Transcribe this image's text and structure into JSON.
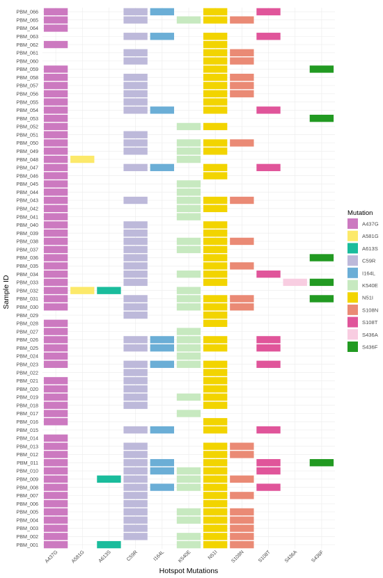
{
  "chart_data": {
    "type": "heatmap",
    "xlabel": "Hotspot Mutations",
    "ylabel": "Sample ID",
    "x_categories": [
      "A437G",
      "A581G",
      "A613S",
      "C59R",
      "I164L",
      "K540E",
      "N51I",
      "S108N",
      "S108T",
      "S436A",
      "S436F"
    ],
    "y_categories": [
      "PBM_066",
      "PBM_065",
      "PBM_064",
      "PBM_063",
      "PBM_062",
      "PBM_061",
      "PBM_060",
      "PBM_059",
      "PBM_058",
      "PBM_057",
      "PBM_056",
      "PBM_055",
      "PBM_054",
      "PBM_053",
      "PBM_052",
      "PBM_051",
      "PBM_050",
      "PBM_049",
      "PBM_048",
      "PBM_047",
      "PBM_046",
      "PBM_045",
      "PBM_044",
      "PBM_043",
      "PBM_042",
      "PBM_041",
      "PBM_040",
      "PBM_039",
      "PBM_038",
      "PBM_037",
      "PBM_036",
      "PBM_035",
      "PBM_034",
      "PBM_033",
      "PBM_032",
      "PBM_031",
      "PBM_030",
      "PBM_029",
      "PBM_028",
      "PBM_027",
      "PBM_026",
      "PBM_025",
      "PBM_024",
      "PBM_023",
      "PBM_022",
      "PBM_021",
      "PBM_020",
      "PBM_019",
      "PBM_018",
      "PBM_017",
      "PBM_016",
      "PBM_015",
      "PBM_014",
      "PBM_013",
      "PBM_012",
      "PBM_011",
      "PBM_010",
      "PBM_009",
      "PBM_008",
      "PBM_007",
      "PBM_006",
      "PBM_005",
      "PBM_004",
      "PBM_003",
      "PBM_002",
      "PBM_001"
    ],
    "presence": {
      "PBM_066": [
        "A437G",
        "C59R",
        "I164L",
        "N51I",
        "S108T"
      ],
      "PBM_065": [
        "A437G",
        "C59R",
        "K540E",
        "N51I",
        "S108N"
      ],
      "PBM_064": [
        "A437G"
      ],
      "PBM_063": [
        "C59R",
        "I164L",
        "N51I",
        "S108T"
      ],
      "PBM_062": [
        "A437G",
        "N51I"
      ],
      "PBM_061": [
        "C59R",
        "N51I",
        "S108N"
      ],
      "PBM_060": [
        "C59R",
        "N51I",
        "S108N"
      ],
      "PBM_059": [
        "A437G",
        "N51I",
        "S436F"
      ],
      "PBM_058": [
        "A437G",
        "C59R",
        "N51I",
        "S108N"
      ],
      "PBM_057": [
        "A437G",
        "C59R",
        "N51I",
        "S108N"
      ],
      "PBM_056": [
        "A437G",
        "C59R",
        "N51I",
        "S108N"
      ],
      "PBM_055": [
        "A437G",
        "C59R",
        "N51I"
      ],
      "PBM_054": [
        "A437G",
        "C59R",
        "I164L",
        "N51I",
        "S108T"
      ],
      "PBM_053": [
        "A437G",
        "S436F"
      ],
      "PBM_052": [
        "A437G",
        "K540E",
        "N51I"
      ],
      "PBM_051": [
        "A437G",
        "C59R"
      ],
      "PBM_050": [
        "A437G",
        "C59R",
        "K540E",
        "N51I",
        "S108N"
      ],
      "PBM_049": [
        "A437G",
        "C59R",
        "K540E",
        "N51I"
      ],
      "PBM_048": [
        "A437G",
        "A581G",
        "K540E"
      ],
      "PBM_047": [
        "A437G",
        "C59R",
        "I164L",
        "N51I",
        "S108T"
      ],
      "PBM_046": [
        "A437G",
        "N51I"
      ],
      "PBM_045": [
        "A437G",
        "K540E"
      ],
      "PBM_044": [
        "A437G",
        "K540E"
      ],
      "PBM_043": [
        "A437G",
        "C59R",
        "K540E",
        "N51I",
        "S108N"
      ],
      "PBM_042": [
        "A437G",
        "K540E",
        "N51I"
      ],
      "PBM_041": [
        "A437G",
        "K540E"
      ],
      "PBM_040": [
        "A437G",
        "C59R",
        "N51I"
      ],
      "PBM_039": [
        "A437G",
        "C59R",
        "N51I"
      ],
      "PBM_038": [
        "A437G",
        "C59R",
        "K540E",
        "N51I",
        "S108N"
      ],
      "PBM_037": [
        "A437G",
        "C59R",
        "K540E",
        "N51I"
      ],
      "PBM_036": [
        "A437G",
        "C59R",
        "N51I",
        "S436F"
      ],
      "PBM_035": [
        "A437G",
        "C59R",
        "N51I",
        "S108N"
      ],
      "PBM_034": [
        "A437G",
        "C59R",
        "K540E",
        "N51I",
        "S108T"
      ],
      "PBM_033": [
        "A437G",
        "C59R",
        "N51I",
        "S436A",
        "S436F"
      ],
      "PBM_032": [
        "A437G",
        "A581G",
        "A613S",
        "K540E"
      ],
      "PBM_031": [
        "A437G",
        "C59R",
        "K540E",
        "N51I",
        "S108N",
        "S436F"
      ],
      "PBM_030": [
        "A437G",
        "C59R",
        "K540E",
        "N51I",
        "S108N"
      ],
      "PBM_029": [
        "C59R",
        "N51I"
      ],
      "PBM_028": [
        "A437G",
        "N51I"
      ],
      "PBM_027": [
        "A437G",
        "K540E"
      ],
      "PBM_026": [
        "A437G",
        "C59R",
        "I164L",
        "K540E",
        "N51I",
        "S108T"
      ],
      "PBM_025": [
        "A437G",
        "C59R",
        "I164L",
        "K540E",
        "N51I",
        "S108T"
      ],
      "PBM_024": [
        "A437G",
        "K540E"
      ],
      "PBM_023": [
        "A437G",
        "C59R",
        "I164L",
        "K540E",
        "N51I",
        "S108T"
      ],
      "PBM_022": [
        "C59R",
        "N51I"
      ],
      "PBM_021": [
        "A437G",
        "C59R",
        "N51I"
      ],
      "PBM_020": [
        "A437G",
        "C59R",
        "N51I"
      ],
      "PBM_019": [
        "A437G",
        "C59R",
        "K540E",
        "N51I"
      ],
      "PBM_018": [
        "A437G",
        "C59R",
        "N51I"
      ],
      "PBM_017": [
        "A437G",
        "K540E"
      ],
      "PBM_016": [
        "A437G",
        "N51I"
      ],
      "PBM_015": [
        "C59R",
        "I164L",
        "N51I",
        "S108T"
      ],
      "PBM_014": [
        "A437G"
      ],
      "PBM_013": [
        "A437G",
        "C59R",
        "N51I",
        "S108N"
      ],
      "PBM_012": [
        "A437G",
        "C59R",
        "N51I",
        "S108N"
      ],
      "PBM_011": [
        "A437G",
        "C59R",
        "I164L",
        "N51I",
        "S108T",
        "S436F"
      ],
      "PBM_010": [
        "A437G",
        "C59R",
        "I164L",
        "K540E",
        "N51I",
        "S108T"
      ],
      "PBM_009": [
        "A437G",
        "A613S",
        "C59R",
        "K540E",
        "N51I",
        "S108N"
      ],
      "PBM_008": [
        "A437G",
        "C59R",
        "I164L",
        "K540E",
        "N51I",
        "S108T"
      ],
      "PBM_007": [
        "A437G",
        "C59R",
        "N51I",
        "S108N"
      ],
      "PBM_006": [
        "A437G",
        "C59R",
        "N51I"
      ],
      "PBM_005": [
        "A437G",
        "C59R",
        "K540E",
        "N51I",
        "S108N"
      ],
      "PBM_004": [
        "A437G",
        "C59R",
        "K540E",
        "N51I",
        "S108N"
      ],
      "PBM_003": [
        "A437G",
        "C59R",
        "N51I",
        "S108N"
      ],
      "PBM_002": [
        "A437G",
        "C59R",
        "K540E",
        "N51I",
        "S108N"
      ],
      "PBM_001": [
        "A437G",
        "A613S",
        "K540E",
        "N51I",
        "S108N"
      ]
    },
    "legend": {
      "title": "Mutation",
      "position": "right",
      "entries": [
        {
          "label": "A437G",
          "color": "#CC79C0"
        },
        {
          "label": "A581G",
          "color": "#FCE96A"
        },
        {
          "label": "A613S",
          "color": "#1ABC9C"
        },
        {
          "label": "C59R",
          "color": "#BDB9DA"
        },
        {
          "label": "I164L",
          "color": "#6BAED6"
        },
        {
          "label": "K540E",
          "color": "#C7E9C0"
        },
        {
          "label": "N51I",
          "color": "#F2D400"
        },
        {
          "label": "S108N",
          "color": "#EA8A75"
        },
        {
          "label": "S108T",
          "color": "#E0559A"
        },
        {
          "label": "S436A",
          "color": "#F8CDE1"
        },
        {
          "label": "S436F",
          "color": "#229A22"
        }
      ]
    },
    "grid": true
  }
}
